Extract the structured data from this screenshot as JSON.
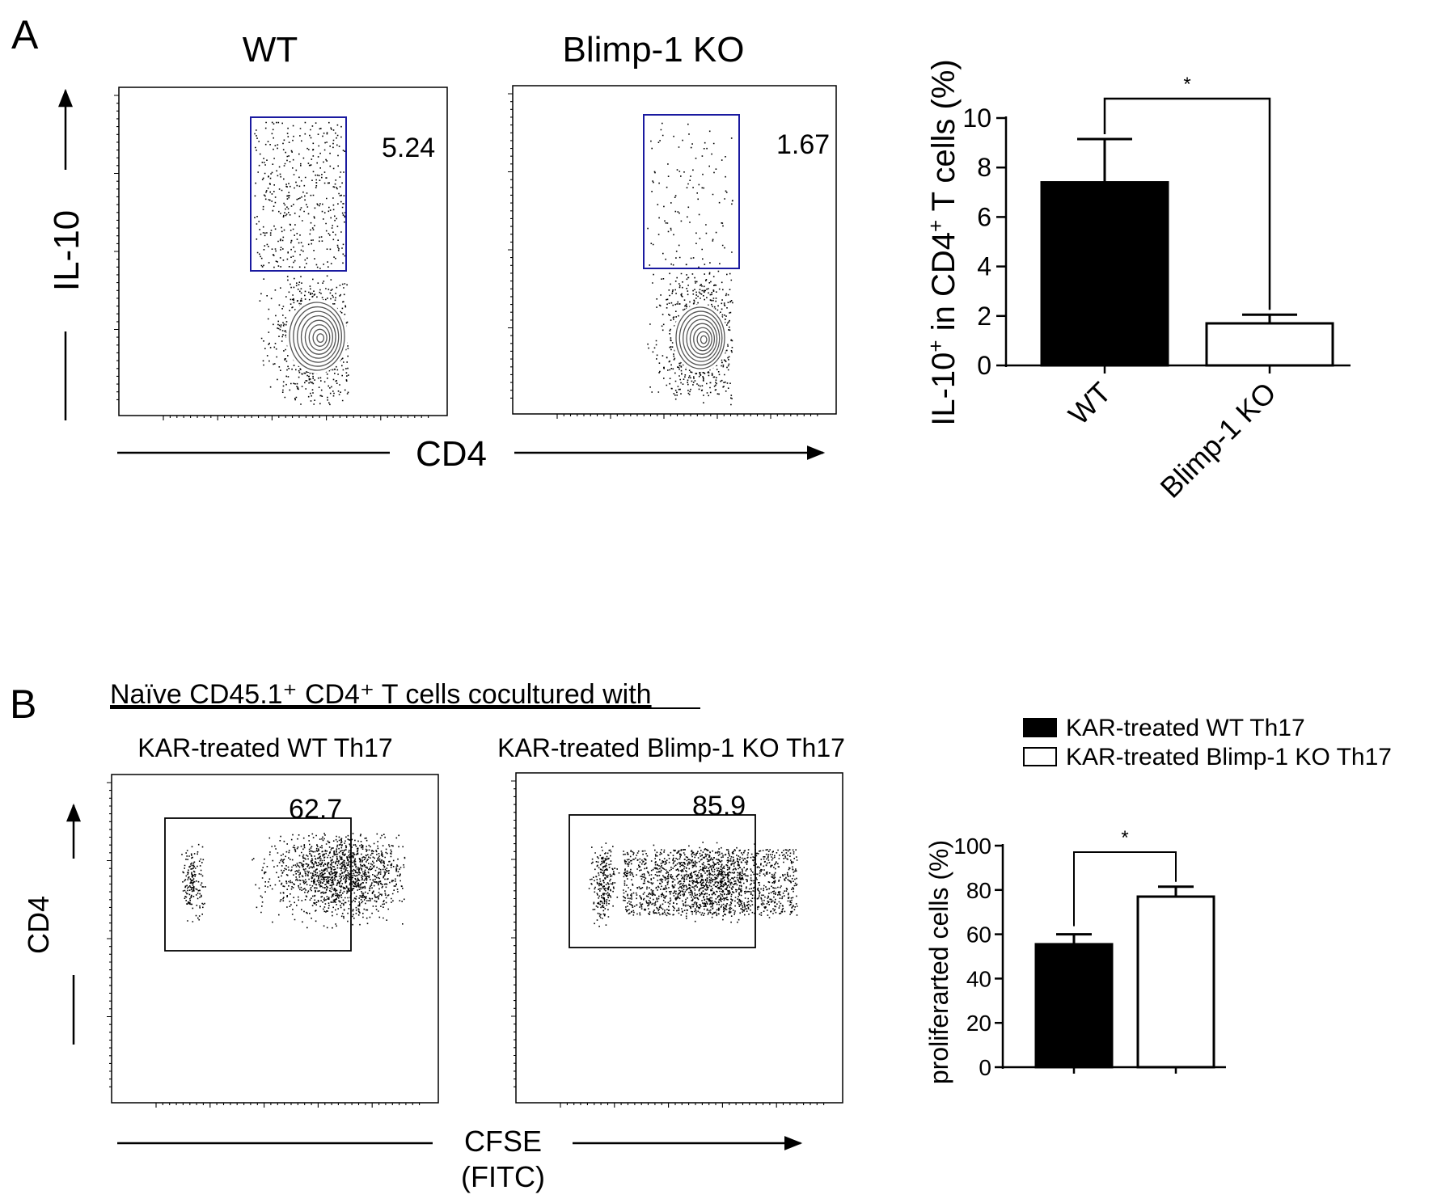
{
  "colors": {
    "gate_a": "#1a1aa0",
    "gate_b": "#000000",
    "gate_pct": "#cc00cc",
    "bar_wt": "#000000",
    "bar_ko": "#ffffff"
  },
  "panel_a": {
    "letter": "A",
    "plot_titles": [
      "WT",
      "Blimp-1 KO"
    ],
    "gate_percents": [
      "5.24",
      "1.67"
    ],
    "y_axis_label": "IL-10",
    "x_axis_label": "CD4"
  },
  "panel_b": {
    "letter": "B",
    "heading": "Naïve CD45.1⁺ CD4⁺ T cells cocultured with",
    "plot_titles": [
      "KAR-treated WT Th17",
      "KAR-treated Blimp-1 KO Th17"
    ],
    "gate_percents": [
      "62.7",
      "85.9"
    ],
    "y_axis_label": "CD4",
    "x_axis_label_line1": "CFSE",
    "x_axis_label_line2": "(FITC)"
  },
  "chart_data": [
    {
      "type": "bar",
      "title": "",
      "ylabel_main": "IL-10",
      "ylabel_sup1": "+",
      "ylabel_mid": " in CD4",
      "ylabel_sup2": "+",
      "ylabel_end": " T cells (%)",
      "xlabel": "",
      "categories": [
        "WT",
        "Blimp-1 KO"
      ],
      "values": [
        7.4,
        1.7
      ],
      "errors": [
        1.75,
        0.35
      ],
      "ylim": [
        0,
        10
      ],
      "yticks": [
        "0",
        "2",
        "4",
        "6",
        "8",
        "10"
      ],
      "significance": "*"
    },
    {
      "type": "bar",
      "title": "",
      "ylabel": "proliferarted cells (%)",
      "xlabel": "",
      "categories": [
        "KAR-treated WT Th17",
        "KAR-treated Blimp-1 KO Th17"
      ],
      "legend": [
        "KAR-treated WT Th17",
        "KAR-treated Blimp-1 KO Th17"
      ],
      "values": [
        55.5,
        77.0
      ],
      "errors": [
        4.5,
        4.5
      ],
      "ylim": [
        0,
        100
      ],
      "yticks": [
        "0",
        "20",
        "40",
        "60",
        "80",
        "100"
      ],
      "significance": "*"
    }
  ]
}
